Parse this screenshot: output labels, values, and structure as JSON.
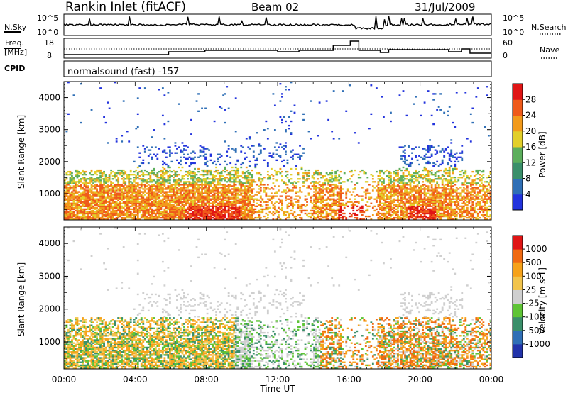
{
  "header": {
    "station": "Rankin Inlet (fitACF)",
    "beam": "Beam 02",
    "date": "31/Jul/2009"
  },
  "top_panel": {
    "left_label": "N.Sky",
    "left_ticks": [
      "10^5",
      "10^0"
    ],
    "right_ticks": [
      "10^5",
      "10^0"
    ],
    "right_label": "N.Search"
  },
  "freq_panel": {
    "label_line1": "Freq.",
    "label_line2": "[MHz]",
    "left_ticks": [
      "18",
      "8"
    ],
    "right_ticks": [
      "60",
      "0"
    ],
    "right_label": "Nave"
  },
  "cpid": {
    "label": "CPID",
    "text": "normalsound (fast) -157"
  },
  "colors": {
    "power_scale": [
      "#2233dd",
      "#2f6fb6",
      "#3a8f6a",
      "#5cae5c",
      "#e2cf2a",
      "#f29a1b",
      "#ef5a1a",
      "#e01515"
    ],
    "velocity_scale": [
      "#e01515",
      "#f06a12",
      "#f6a21a",
      "#f2c44c",
      "#cfcfcf",
      "#5ec435",
      "#3a8f6a",
      "#2f6fb6",
      "#2233aa"
    ]
  },
  "chart_data": [
    {
      "type": "heatmap",
      "title": "",
      "xlabel": "",
      "ylabel": "Slant Range [km]",
      "x_ticks": [
        "00:00",
        "04:00",
        "08:00",
        "12:00",
        "16:00",
        "20:00",
        "00:00"
      ],
      "y_ticks": [
        "1000",
        "2000",
        "3000",
        "4000"
      ],
      "ylim": [
        180,
        4500
      ],
      "colorbar_label": "Power [dB]",
      "colorbar_ticks": [
        "28",
        "24",
        "20",
        "16",
        "12",
        "8",
        "4"
      ],
      "colorbar_range": [
        0,
        32
      ]
    },
    {
      "type": "heatmap",
      "title": "",
      "xlabel": "Time UT",
      "ylabel": "Slant Range [km]",
      "x_ticks": [
        "00:00",
        "04:00",
        "08:00",
        "12:00",
        "16:00",
        "20:00",
        "00:00"
      ],
      "y_ticks": [
        "1000",
        "2000",
        "3000",
        "4000"
      ],
      "ylim": [
        180,
        4500
      ],
      "colorbar_label": "Velocity [m s-1]",
      "colorbar_ticks": [
        "1000",
        "500",
        "100",
        "25",
        "-25",
        "-100",
        "-500",
        "-1000"
      ]
    }
  ]
}
